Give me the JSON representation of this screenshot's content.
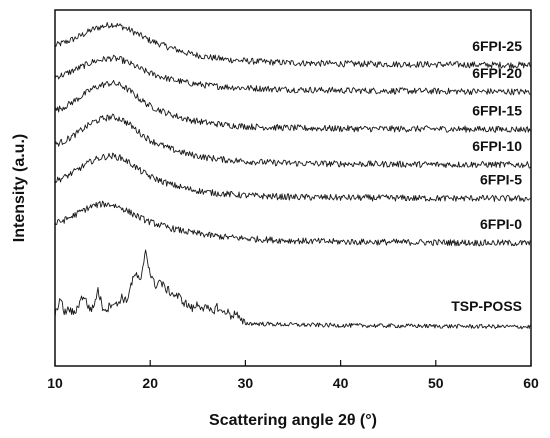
{
  "chart_data": {
    "type": "line",
    "title": "",
    "xlabel": "Scattering angle 2θ (°)",
    "ylabel": "Intensity (a.u.)",
    "xlim": [
      10,
      60
    ],
    "xticks": [
      10,
      20,
      30,
      40,
      50,
      60
    ],
    "yticks": "none",
    "grid": false,
    "legend": "labels placed beside each curve",
    "series": [
      {
        "name": "6FPI-25",
        "baseline": 0.845,
        "peak": 0.96,
        "x": [
          10,
          11,
          12,
          13,
          14,
          15,
          16,
          17,
          18,
          19,
          20,
          22,
          24,
          26,
          28,
          30,
          33,
          36,
          40,
          45,
          50,
          55,
          60
        ],
        "y": [
          0.9,
          0.909,
          0.919,
          0.932,
          0.946,
          0.954,
          0.96,
          0.954,
          0.942,
          0.928,
          0.914,
          0.895,
          0.878,
          0.868,
          0.861,
          0.857,
          0.853,
          0.851,
          0.849,
          0.848,
          0.847,
          0.846,
          0.845
        ]
      },
      {
        "name": "6FPI-20",
        "baseline": 0.77,
        "peak": 0.865,
        "x": [
          10,
          11,
          12,
          13,
          14,
          15,
          16,
          17,
          18,
          19,
          20,
          22,
          24,
          26,
          28,
          30,
          33,
          36,
          40,
          45,
          50,
          55,
          60
        ],
        "y": [
          0.812,
          0.819,
          0.831,
          0.843,
          0.855,
          0.861,
          0.865,
          0.86,
          0.848,
          0.834,
          0.822,
          0.806,
          0.795,
          0.788,
          0.784,
          0.781,
          0.778,
          0.776,
          0.774,
          0.773,
          0.772,
          0.771,
          0.77
        ]
      },
      {
        "name": "6FPI-15",
        "baseline": 0.665,
        "peak": 0.795,
        "x": [
          10,
          11,
          12,
          13,
          14,
          15,
          16,
          17,
          18,
          19,
          20,
          22,
          24,
          26,
          28,
          30,
          33,
          36,
          40,
          45,
          50,
          55,
          60
        ],
        "y": [
          0.718,
          0.728,
          0.744,
          0.762,
          0.78,
          0.79,
          0.795,
          0.788,
          0.77,
          0.748,
          0.73,
          0.708,
          0.692,
          0.683,
          0.677,
          0.673,
          0.67,
          0.668,
          0.667,
          0.666,
          0.666,
          0.665,
          0.665
        ]
      },
      {
        "name": "6FPI-10",
        "baseline": 0.565,
        "peak": 0.7,
        "x": [
          10,
          11,
          12,
          13,
          14,
          15,
          16,
          17,
          18,
          19,
          20,
          22,
          24,
          26,
          28,
          30,
          33,
          36,
          40,
          45,
          50,
          55,
          60
        ],
        "y": [
          0.622,
          0.632,
          0.648,
          0.667,
          0.685,
          0.695,
          0.7,
          0.693,
          0.675,
          0.653,
          0.634,
          0.611,
          0.595,
          0.585,
          0.579,
          0.575,
          0.571,
          0.569,
          0.568,
          0.567,
          0.566,
          0.566,
          0.565
        ]
      },
      {
        "name": "6FPI-5",
        "baseline": 0.47,
        "peak": 0.59,
        "x": [
          10,
          11,
          12,
          13,
          14,
          15,
          16,
          17,
          18,
          19,
          20,
          22,
          24,
          26,
          28,
          30,
          33,
          36,
          40,
          45,
          50,
          55,
          60
        ],
        "y": [
          0.52,
          0.53,
          0.545,
          0.562,
          0.578,
          0.587,
          0.59,
          0.584,
          0.568,
          0.548,
          0.532,
          0.511,
          0.497,
          0.488,
          0.483,
          0.479,
          0.476,
          0.474,
          0.473,
          0.472,
          0.471,
          0.471,
          0.47
        ]
      },
      {
        "name": "6FPI-0",
        "baseline": 0.345,
        "peak": 0.455,
        "x": [
          10,
          11,
          12,
          13,
          14,
          15,
          16,
          17,
          18,
          19,
          20,
          22,
          24,
          26,
          28,
          30,
          33,
          36,
          40,
          45,
          50,
          55,
          60
        ],
        "y": [
          0.4,
          0.41,
          0.423,
          0.438,
          0.45,
          0.455,
          0.453,
          0.444,
          0.43,
          0.416,
          0.404,
          0.388,
          0.376,
          0.368,
          0.362,
          0.358,
          0.354,
          0.351,
          0.349,
          0.348,
          0.347,
          0.346,
          0.345
        ]
      },
      {
        "name": "TSP-POSS",
        "baseline": 0.11,
        "peak": 0.33,
        "x": [
          10.0,
          10.5,
          11.0,
          11.5,
          12.0,
          12.5,
          13.0,
          13.5,
          14.0,
          14.5,
          15.0,
          15.5,
          16.0,
          16.5,
          17.0,
          17.5,
          18.0,
          18.5,
          19.0,
          19.5,
          20.0,
          20.5,
          21.0,
          21.5,
          22.0,
          22.5,
          23.0,
          23.5,
          24.0,
          24.5,
          25.0,
          25.5,
          26.0,
          26.5,
          27.0,
          27.5,
          28.0,
          28.5,
          29.0,
          29.5,
          30.0,
          32.0,
          35.0,
          40.0,
          45.0,
          50.0,
          55.0,
          60.0
        ],
        "y": [
          0.14,
          0.19,
          0.15,
          0.16,
          0.145,
          0.175,
          0.2,
          0.165,
          0.16,
          0.215,
          0.165,
          0.16,
          0.18,
          0.17,
          0.195,
          0.18,
          0.23,
          0.26,
          0.23,
          0.33,
          0.26,
          0.225,
          0.24,
          0.22,
          0.21,
          0.2,
          0.195,
          0.18,
          0.17,
          0.16,
          0.175,
          0.165,
          0.16,
          0.15,
          0.168,
          0.15,
          0.155,
          0.14,
          0.15,
          0.125,
          0.12,
          0.118,
          0.116,
          0.114,
          0.113,
          0.112,
          0.111,
          0.11
        ]
      }
    ]
  }
}
